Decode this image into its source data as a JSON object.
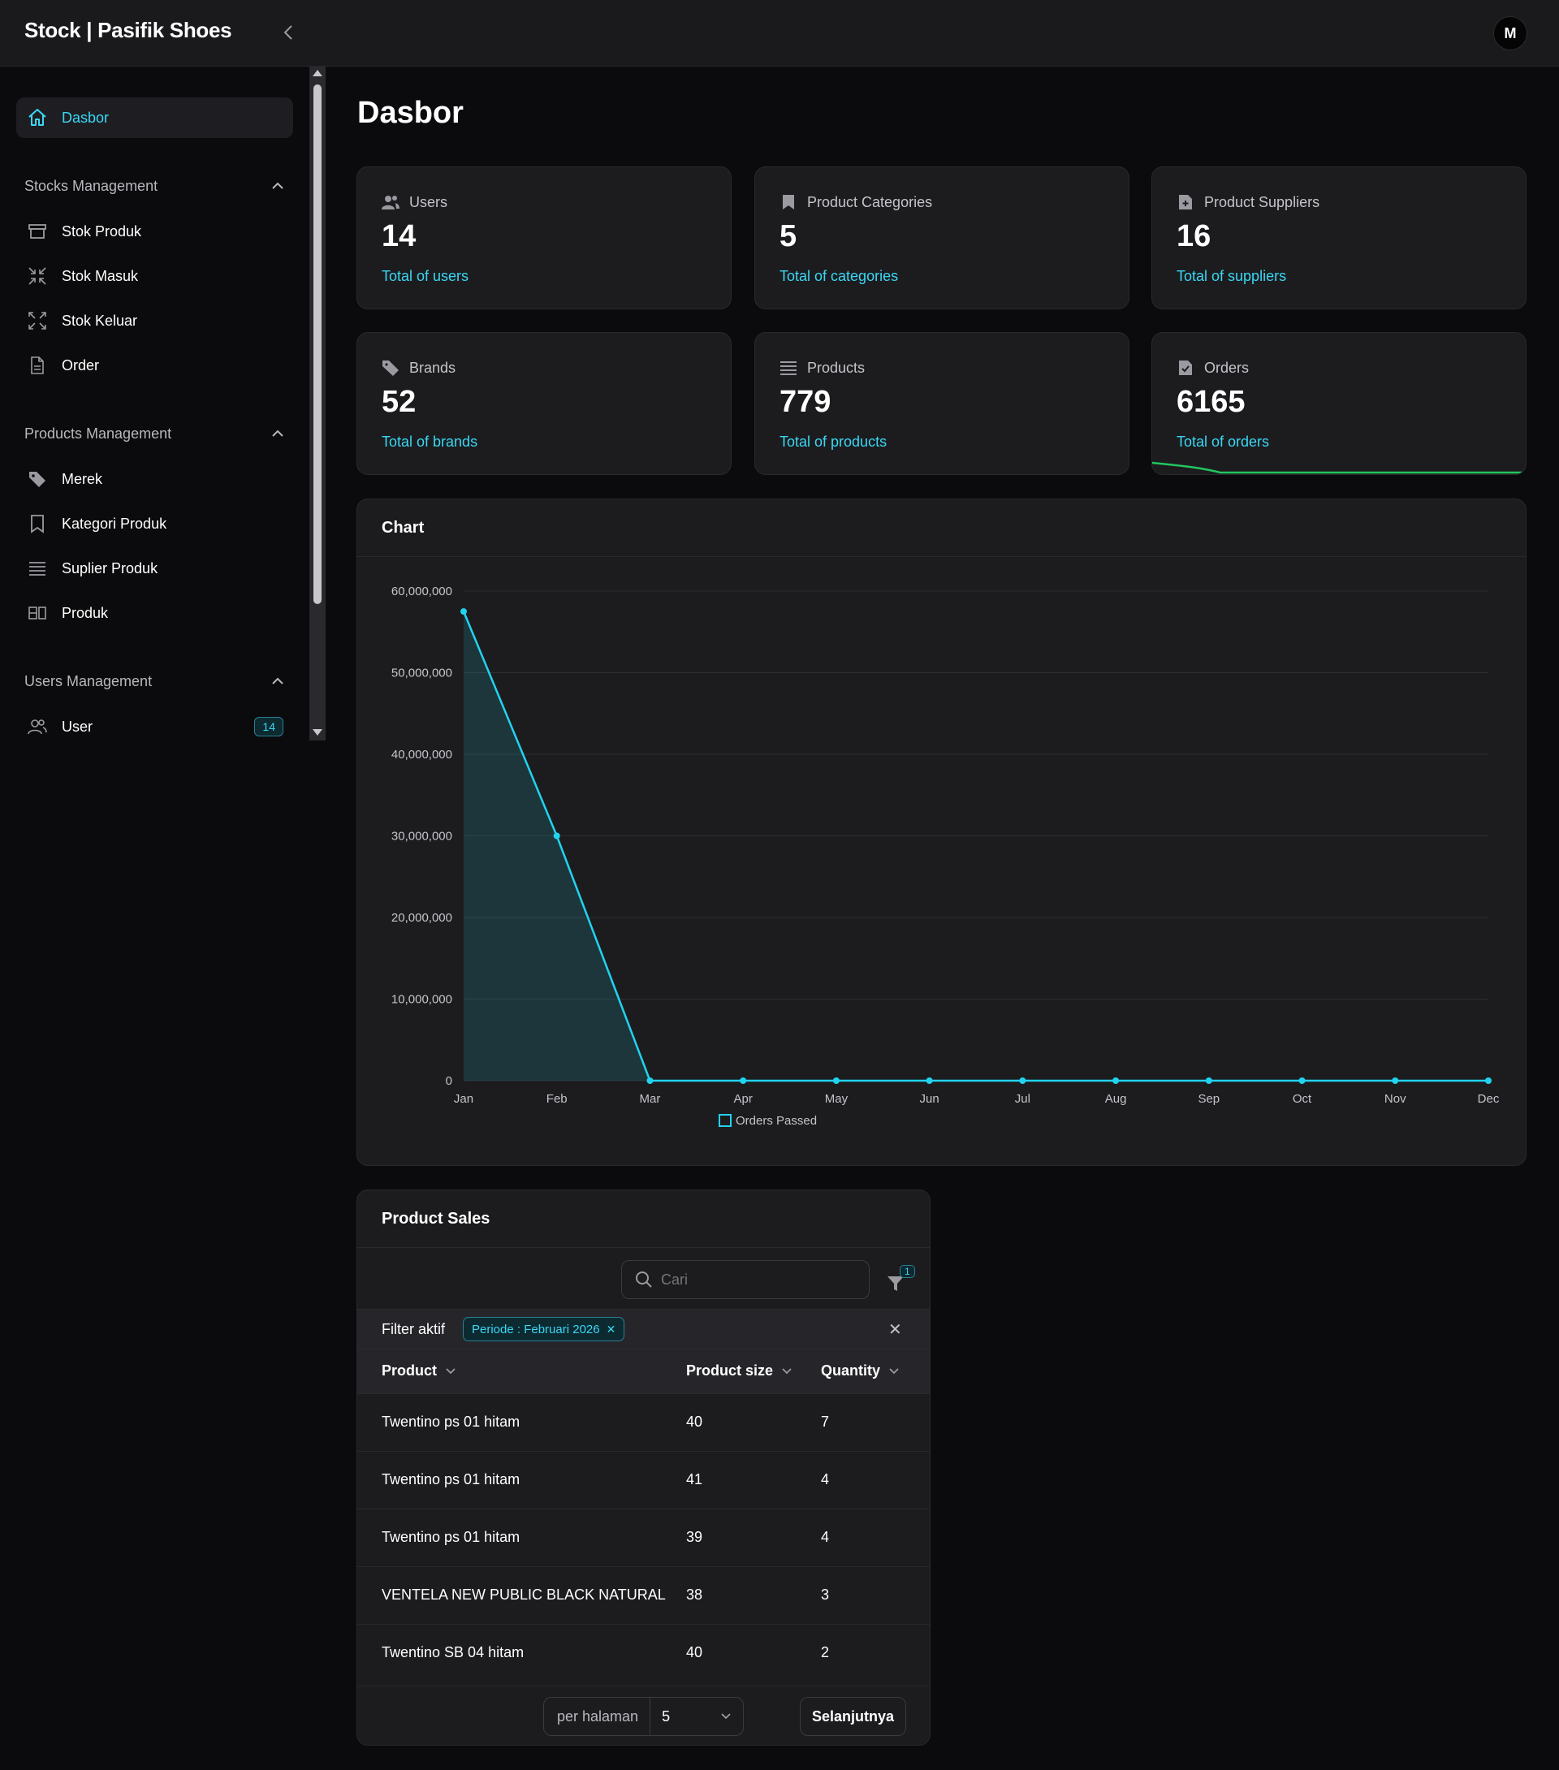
{
  "brand": "Stock | Pasifik Shoes",
  "user": {
    "initial": "M"
  },
  "sidebar": {
    "active": "Dasbor",
    "groups": [
      {
        "title": "Stocks Management",
        "items": [
          "Stok Produk",
          "Stok Masuk",
          "Stok Keluar",
          "Order"
        ]
      },
      {
        "title": "Products Management",
        "items": [
          "Merek",
          "Kategori Produk",
          "Suplier Produk",
          "Produk"
        ]
      },
      {
        "title": "Users Management",
        "items": [
          "User"
        ]
      }
    ],
    "user_badge": "14"
  },
  "page_title": "Dasbor",
  "cards": [
    {
      "label": "Users",
      "value": "14",
      "desc": "Total of users",
      "icon": "users-icon"
    },
    {
      "label": "Product Categories",
      "value": "5",
      "desc": "Total of categories",
      "icon": "bookmark-icon"
    },
    {
      "label": "Product Suppliers",
      "value": "16",
      "desc": "Total of suppliers",
      "icon": "file-plus-icon"
    },
    {
      "label": "Brands",
      "value": "52",
      "desc": "Total of brands",
      "icon": "tag-icon"
    },
    {
      "label": "Products",
      "value": "779",
      "desc": "Total of products",
      "icon": "list-icon"
    },
    {
      "label": "Orders",
      "value": "6165",
      "desc": "Total of orders",
      "icon": "file-check-icon"
    }
  ],
  "chart_panel": {
    "title": "Chart"
  },
  "chart_data": {
    "type": "area",
    "categories": [
      "Jan",
      "Feb",
      "Mar",
      "Apr",
      "May",
      "Jun",
      "Jul",
      "Aug",
      "Sep",
      "Oct",
      "Nov",
      "Dec"
    ],
    "series": [
      {
        "name": "Orders Passed",
        "values": [
          57500000,
          30000000,
          0,
          0,
          0,
          0,
          0,
          0,
          0,
          0,
          0,
          0
        ]
      }
    ],
    "yticks": [
      "60,000,000",
      "50,000,000",
      "40,000,000",
      "30,000,000",
      "20,000,000",
      "10,000,000",
      "0"
    ],
    "ylim": [
      0,
      60000000
    ],
    "grid": true,
    "legend": "bottom",
    "color": "#22d3ee"
  },
  "sales": {
    "title": "Product Sales",
    "search_placeholder": "Cari",
    "filter_count": "1",
    "filter_label": "Filter aktif",
    "filter_chip": "Periode : Februari 2026",
    "columns": [
      "Product",
      "Product size",
      "Quantity"
    ],
    "rows": [
      [
        "Twentino ps 01 hitam",
        "40",
        "7"
      ],
      [
        "Twentino ps 01 hitam",
        "41",
        "4"
      ],
      [
        "Twentino ps 01 hitam",
        "39",
        "4"
      ],
      [
        "VENTELA NEW PUBLIC BLACK NATURAL",
        "38",
        "3"
      ],
      [
        "Twentino SB 04 hitam",
        "40",
        "2"
      ]
    ],
    "per_page_label": "per halaman",
    "per_page_value": "5",
    "next_label": "Selanjutnya"
  },
  "colors": {
    "accent": "#3ad7f3",
    "sparkline": "#22c55e",
    "bg": "#0b0b0d",
    "card": "#1c1c1f"
  }
}
